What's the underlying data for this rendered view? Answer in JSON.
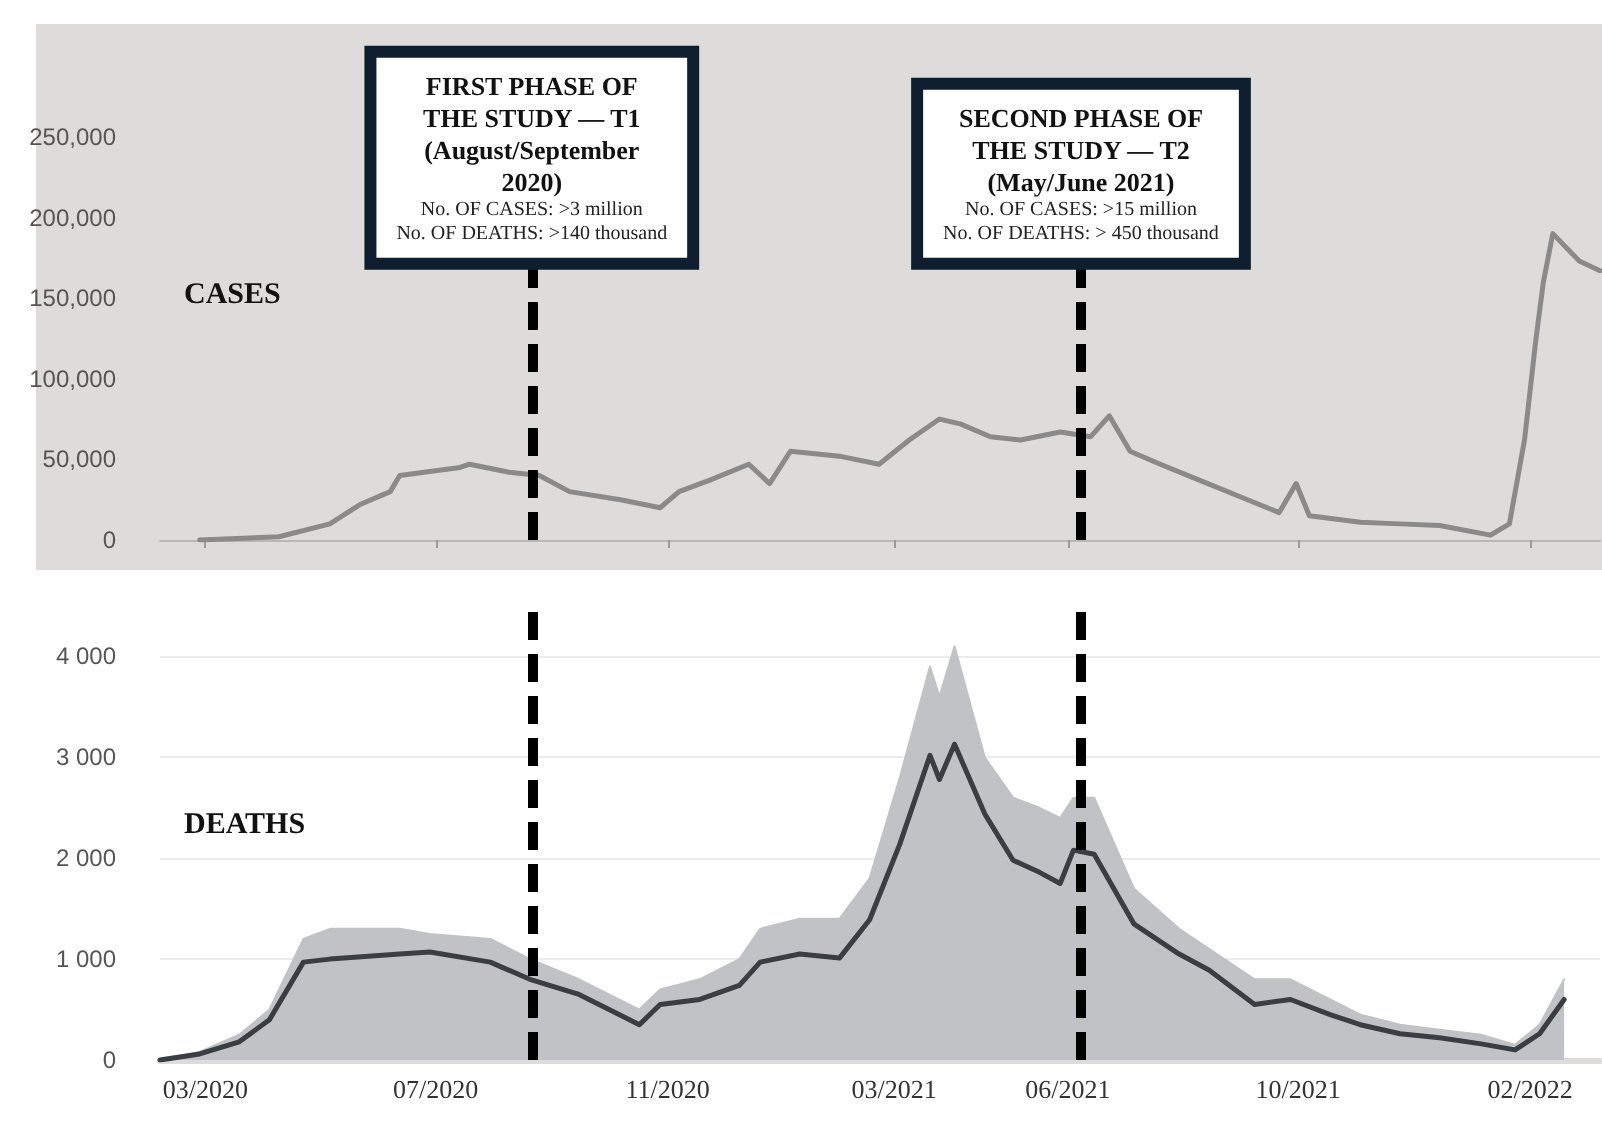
{
  "chart_data": [
    {
      "type": "line",
      "title": "CASES",
      "tick_labels": "y",
      "marker": "none",
      "xlim": [
        "2020-02-06",
        "2022-03-10"
      ],
      "xticks": [
        {
          "value": "2020-03-01",
          "label": null
        },
        {
          "value": "2020-07-01",
          "label": null
        },
        {
          "value": "2020-11-01",
          "label": null
        },
        {
          "value": "2021-03-01",
          "label": null
        },
        {
          "value": "2021-06-01",
          "label": null
        },
        {
          "value": "2021-10-01",
          "label": null
        },
        {
          "value": "2022-02-01",
          "label": null
        }
      ],
      "ylim": [
        0,
        320000
      ],
      "yticks": [
        {
          "value": 0,
          "label": "0"
        },
        {
          "value": 50000,
          "label": "50,000"
        },
        {
          "value": 100000,
          "label": "100,000"
        },
        {
          "value": 150000,
          "label": "150,000"
        },
        {
          "value": 200000,
          "label": "200,000"
        },
        {
          "value": 250000,
          "label": "250,000"
        }
      ],
      "x": [
        "2020-02-27",
        "2020-04-09",
        "2020-05-06",
        "2020-05-22",
        "2020-06-07",
        "2020-06-12",
        "2020-07-14",
        "2020-07-19",
        "2020-08-09",
        "2020-08-25",
        "2020-09-10",
        "2020-10-07",
        "2020-10-28",
        "2020-11-07",
        "2020-11-23",
        "2020-12-14",
        "2020-12-25",
        "2021-01-05",
        "2021-01-31",
        "2021-02-21",
        "2021-03-09",
        "2021-03-25",
        "2021-04-05",
        "2021-04-21",
        "2021-05-07",
        "2021-05-28",
        "2021-06-13",
        "2021-06-23",
        "2021-07-04",
        "2021-07-20",
        "2021-08-10",
        "2021-08-31",
        "2021-09-21",
        "2021-09-30",
        "2021-10-07",
        "2021-11-03",
        "2021-11-24",
        "2021-12-15",
        "2022-01-11",
        "2022-01-21",
        "2022-01-29",
        "2022-02-04",
        "2022-02-08",
        "2022-02-13",
        "2022-02-27",
        "2022-03-10"
      ],
      "series": [
        {
          "color": "#8a8a8a",
          "values": [
            0,
            2000,
            10000,
            22000,
            30000,
            40000,
            45000,
            47000,
            42000,
            40000,
            30000,
            25000,
            20000,
            30000,
            37000,
            47000,
            35000,
            55000,
            52000,
            47000,
            62000,
            75000,
            72000,
            64000,
            62000,
            67000,
            64000,
            77000,
            55000,
            47000,
            37000,
            27000,
            17000,
            35000,
            15000,
            11000,
            10000,
            9000,
            3000,
            10000,
            62000,
            124000,
            160000,
            190000,
            173000,
            167000
          ]
        }
      ],
      "ref_lines": [
        {
          "axis": "x",
          "value": "2020-08-21",
          "line_style": "dashed",
          "color": "#000000",
          "label": "FIRST PHASE OF\nTHE STUDY — T1\n(August/September\n2020)\nNo. OF CASES: >3 million\nNo. OF DEATHS: >140 thousand"
        },
        {
          "axis": "x",
          "value": "2021-06-08",
          "line_style": "dashed",
          "color": "#000000",
          "label": "SECOND PHASE OF\nTHE STUDY — T2\n(May/June 2021)\nNo. OF CASES: >15 million\nNo. OF DEATHS: > 450 thousand"
        }
      ]
    },
    {
      "type": "area",
      "title": "DEATHS",
      "grid": "y",
      "marker": "none",
      "xlim": [
        "2020-02-06",
        "2022-03-10"
      ],
      "xticks": [
        {
          "value": "2020-03-01",
          "label": "03/2020"
        },
        {
          "value": "2020-07-01",
          "label": "07/2020"
        },
        {
          "value": "2020-11-01",
          "label": "11/2020"
        },
        {
          "value": "2021-03-01",
          "label": "03/2021"
        },
        {
          "value": "2021-06-01",
          "label": "06/2021"
        },
        {
          "value": "2021-10-01",
          "label": "10/2021"
        },
        {
          "value": "2022-02-01",
          "label": "02/2022"
        }
      ],
      "ylim": [
        0,
        4500
      ],
      "yticks": [
        {
          "value": 0,
          "label": "0"
        },
        {
          "value": 1000,
          "label": "1 000"
        },
        {
          "value": 2000,
          "label": "2 000"
        },
        {
          "value": 3000,
          "label": "3 000"
        },
        {
          "value": 4000,
          "label": "4 000"
        }
      ],
      "x": [
        "2020-02-06",
        "2020-02-27",
        "2020-03-19",
        "2020-04-04",
        "2020-04-22",
        "2020-05-06",
        "2020-06-12",
        "2020-06-28",
        "2020-07-30",
        "2020-08-20",
        "2020-09-15",
        "2020-10-17",
        "2020-10-28",
        "2020-11-18",
        "2020-12-09",
        "2020-12-20",
        "2021-01-10",
        "2021-01-31",
        "2021-02-16",
        "2021-03-04",
        "2021-03-20",
        "2021-03-25",
        "2021-04-02",
        "2021-04-18",
        "2021-05-03",
        "2021-05-17",
        "2021-05-28",
        "2021-06-04",
        "2021-06-15",
        "2021-07-06",
        "2021-07-30",
        "2021-08-15",
        "2021-09-08",
        "2021-09-27",
        "2021-10-18",
        "2021-11-03",
        "2021-11-24",
        "2021-12-15",
        "2022-01-06",
        "2022-01-24",
        "2022-02-06",
        "2022-02-19"
      ],
      "series": [
        {
          "color": "#c0c2c6",
          "values": [
            0,
            80,
            250,
            500,
            1200,
            1300,
            1300,
            1250,
            1200,
            1000,
            800,
            500,
            700,
            800,
            1000,
            1300,
            1400,
            1400,
            1800,
            2800,
            3900,
            3600,
            4100,
            3000,
            2600,
            2500,
            2400,
            2600,
            2600,
            1700,
            1300,
            1100,
            800,
            800,
            600,
            450,
            350,
            300,
            250,
            150,
            350,
            800
          ]
        },
        {
          "type": "line",
          "color": "#3a3d42",
          "values": [
            0,
            60,
            180,
            400,
            970,
            1000,
            1050,
            1070,
            970,
            800,
            650,
            350,
            550,
            600,
            740,
            970,
            1050,
            1010,
            1390,
            2140,
            3020,
            2780,
            3130,
            2440,
            1980,
            1860,
            1750,
            2080,
            2040,
            1350,
            1050,
            890,
            550,
            600,
            450,
            350,
            260,
            220,
            160,
            100,
            260,
            600
          ]
        }
      ],
      "ref_lines": [
        {
          "axis": "x",
          "value": "2020-08-21",
          "line_style": "dashed",
          "color": "#000000"
        },
        {
          "axis": "x",
          "value": "2021-06-08",
          "line_style": "dashed",
          "color": "#000000"
        }
      ]
    }
  ]
}
